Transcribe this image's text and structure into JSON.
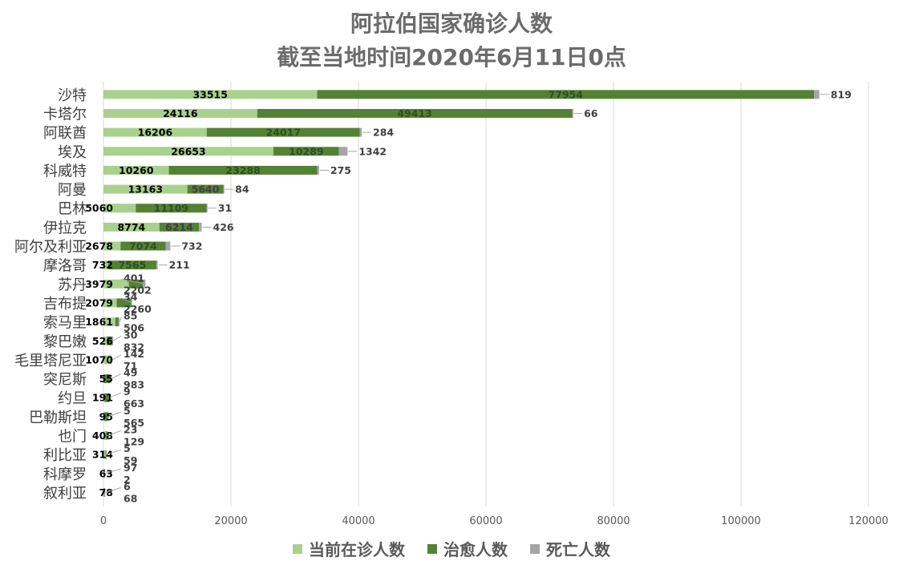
{
  "chart_data": {
    "type": "bar",
    "orientation": "horizontal",
    "stacked": true,
    "title": "阿拉伯国家确诊人数",
    "subtitle": "截至当地时间2020年6月11日0点",
    "categories": [
      "沙特",
      "卡塔尔",
      "阿联酋",
      "埃及",
      "科威特",
      "阿曼",
      "巴林",
      "伊拉克",
      "阿尔及利亚",
      "摩洛哥",
      "苏丹",
      "吉布提",
      "索马里",
      "黎巴嫩",
      "毛里塔尼亚",
      "突尼斯",
      "约旦",
      "巴勒斯坦",
      "也门",
      "利比亚",
      "科摩罗",
      "叙利亚"
    ],
    "series": [
      {
        "name": "当前在诊人数",
        "color": "#a9d18e",
        "values": [
          33515,
          24116,
          16206,
          26653,
          10260,
          13163,
          5060,
          8774,
          2678,
          732,
          3979,
          2079,
          1861,
          526,
          1070,
          55,
          191,
          95,
          408,
          314,
          63,
          78
        ]
      },
      {
        "name": "治愈人数",
        "color": "#548235",
        "values": [
          77954,
          49413,
          24017,
          10289,
          23288,
          5640,
          11109,
          6214,
          7074,
          7565,
          2202,
          2260,
          506,
          832,
          71,
          983,
          663,
          565,
          129,
          59,
          2,
          68
        ]
      },
      {
        "name": "死亡人数",
        "color": "#a5a5a5",
        "values": [
          819,
          66,
          284,
          1342,
          275,
          84,
          31,
          426,
          732,
          211,
          401,
          34,
          85,
          30,
          142,
          49,
          9,
          5,
          23,
          5,
          97,
          6
        ]
      }
    ],
    "xlim": [
      0,
      120000
    ],
    "xticks": [
      0,
      20000,
      40000,
      60000,
      80000,
      100000,
      120000
    ],
    "grid": "vertical",
    "legend_position": "bottom"
  }
}
